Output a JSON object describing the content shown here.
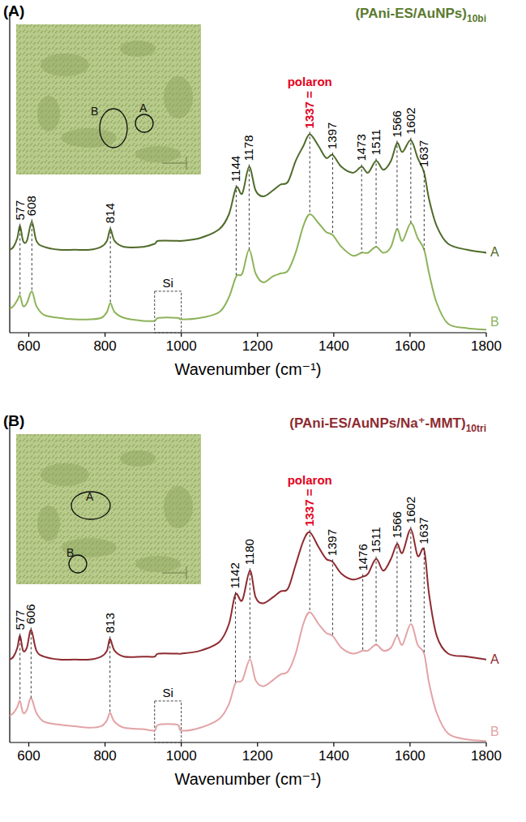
{
  "chart_data": [
    {
      "type": "line",
      "panel": "(A)",
      "title": "(PAni-ES/AuNPs)",
      "title_sub": "10bi",
      "color": "#5a7a2e",
      "x_label": "Wavenumber (cm⁻¹)",
      "x": [
        550,
        560,
        570,
        577,
        585,
        595,
        608,
        620,
        640,
        680,
        720,
        760,
        790,
        805,
        814,
        825,
        850,
        900,
        930,
        940,
        990,
        1000,
        1050,
        1100,
        1125,
        1144,
        1160,
        1178,
        1195,
        1215,
        1240,
        1260,
        1280,
        1300,
        1320,
        1337,
        1360,
        1380,
        1397,
        1420,
        1450,
        1473,
        1490,
        1511,
        1530,
        1550,
        1566,
        1580,
        1602,
        1620,
        1637,
        1650,
        1670,
        1700,
        1750,
        1800
      ],
      "series": [
        {
          "name": "A",
          "color": "#4f6b2a",
          "values": [
            28,
            29,
            32,
            36,
            31,
            31,
            37.5,
            31,
            29,
            28,
            28,
            28,
            29,
            31,
            35,
            31,
            29,
            29,
            30,
            31,
            31,
            31,
            32,
            35,
            40,
            49,
            47,
            56,
            48,
            46,
            48,
            50,
            51,
            58,
            63,
            67,
            63,
            59,
            60,
            56,
            54,
            56,
            54,
            58,
            55,
            58,
            64,
            61,
            65,
            59,
            54,
            45,
            36,
            30,
            28,
            27
          ]
        },
        {
          "name": "B",
          "color": "#8db35a",
          "values": [
            8,
            9,
            11,
            12.5,
            9,
            10,
            14,
            9,
            6,
            5,
            4.5,
            4.5,
            5,
            7,
            10,
            7,
            5,
            4,
            4,
            5,
            5,
            4.5,
            5,
            7,
            12,
            19,
            20,
            28,
            20,
            17,
            19,
            20,
            21,
            27,
            36,
            40,
            37,
            34,
            33,
            29,
            26,
            27,
            27,
            29,
            27,
            29,
            35,
            31,
            37,
            32,
            28,
            20,
            10,
            3,
            1.5,
            1
          ]
        }
      ],
      "xlim": [
        550,
        1800
      ],
      "xticks": [
        600,
        800,
        1000,
        1200,
        1400,
        1600,
        1800
      ],
      "ylim": [
        0,
        100
      ],
      "tick_labels": "x",
      "grid": false,
      "peaks": [
        577,
        608,
        814,
        1144,
        1178,
        {
          "value": 1337,
          "label": "1337 =",
          "color": "#e3001b",
          "annotation": "polaron"
        },
        1397,
        1473,
        1511,
        1566,
        1602,
        1637
      ],
      "region": {
        "label": "Si",
        "x": [
          930,
          1000
        ],
        "y": [
          0,
          14
        ]
      },
      "inset_labels": [
        "A",
        "B"
      ]
    },
    {
      "type": "line",
      "panel": "(B)",
      "title": "(PAni-ES/AuNPs/Na⁺-MMT)",
      "title_sub": "10tri",
      "color": "#8e2b31",
      "x_label": "Wavenumber (cm⁻¹)",
      "x": [
        550,
        560,
        570,
        577,
        585,
        595,
        606,
        620,
        640,
        680,
        720,
        760,
        790,
        805,
        813,
        825,
        850,
        900,
        930,
        940,
        990,
        1000,
        1050,
        1100,
        1125,
        1142,
        1160,
        1180,
        1195,
        1215,
        1240,
        1260,
        1280,
        1300,
        1320,
        1337,
        1360,
        1380,
        1397,
        1420,
        1450,
        1476,
        1490,
        1511,
        1530,
        1550,
        1566,
        1580,
        1602,
        1620,
        1637,
        1650,
        1670,
        1700,
        1750,
        1800
      ],
      "series": [
        {
          "name": "A",
          "color": "#8e2b31",
          "values": [
            28,
            29,
            32,
            36,
            31,
            32,
            38,
            31,
            29,
            28,
            28,
            28,
            29,
            31,
            35,
            31,
            29,
            29,
            29,
            30,
            30,
            30,
            31,
            34,
            40,
            50,
            48,
            58,
            49,
            47,
            49,
            51,
            52,
            60,
            68,
            71,
            66,
            62,
            61,
            57,
            55,
            56,
            57,
            62,
            58,
            62,
            67,
            64,
            72,
            63,
            65,
            50,
            36,
            30,
            29,
            28
          ]
        },
        {
          "name": "B",
          "color": "#e3a3a6",
          "values": [
            9,
            10,
            12,
            14,
            10,
            11,
            15,
            10,
            7,
            6,
            5.5,
            5,
            5.5,
            7.5,
            10,
            7,
            5,
            4.5,
            4,
            6,
            6,
            4,
            5,
            8,
            13,
            20,
            21,
            28,
            21,
            19,
            21,
            23,
            24,
            30,
            40,
            44,
            40,
            37,
            36,
            32,
            30,
            31,
            31,
            33,
            31,
            32,
            36,
            33,
            40,
            33,
            30,
            20,
            10,
            3,
            1,
            0.5
          ]
        }
      ],
      "xlim": [
        550,
        1800
      ],
      "xticks": [
        600,
        800,
        1000,
        1200,
        1400,
        1600,
        1800
      ],
      "ylim": [
        0,
        100
      ],
      "tick_labels": "x",
      "grid": false,
      "peaks": [
        577,
        606,
        813,
        1142,
        1180,
        {
          "value": 1337,
          "label": "1337 =",
          "color": "#e3001b",
          "annotation": "polaron"
        },
        1397,
        1476,
        1511,
        1566,
        1602,
        1637
      ],
      "region": {
        "label": "Si",
        "x": [
          930,
          1000
        ],
        "y": [
          0,
          14
        ]
      },
      "inset_labels": [
        "A",
        "B"
      ]
    }
  ]
}
